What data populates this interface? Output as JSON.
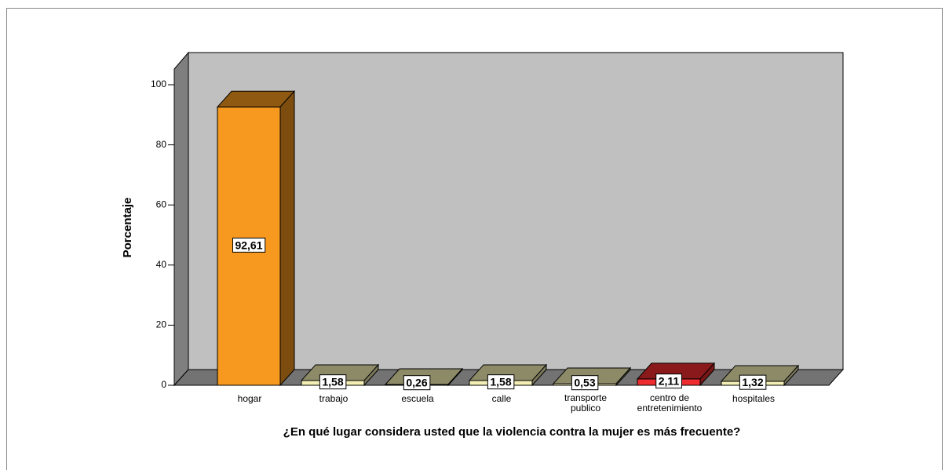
{
  "chart_data": {
    "type": "bar3d",
    "xlabel": "¿En qué lugar considera usted que la violencia contra la mujer es más frecuente?",
    "ylabel": "Porcentaje",
    "categories": [
      "hogar",
      "trabajo",
      "escuela",
      "calle",
      "transporte publico",
      "centro de entretenimiento",
      "hospitales"
    ],
    "values": [
      92.61,
      1.58,
      0.26,
      1.58,
      0.53,
      2.11,
      1.32
    ],
    "value_labels": [
      "92,61",
      "1,58",
      "0,26",
      "1,58",
      "0,53",
      "2,11",
      "1,32"
    ],
    "colors": [
      "#f7991e",
      "#f3eeb4",
      "#f3eeb4",
      "#f3eeb4",
      "#f3eeb4",
      "#ee2b2e",
      "#f3eeb4"
    ],
    "ylim": [
      0,
      100
    ],
    "yticks": [
      0,
      20,
      40,
      60,
      80,
      100
    ]
  }
}
